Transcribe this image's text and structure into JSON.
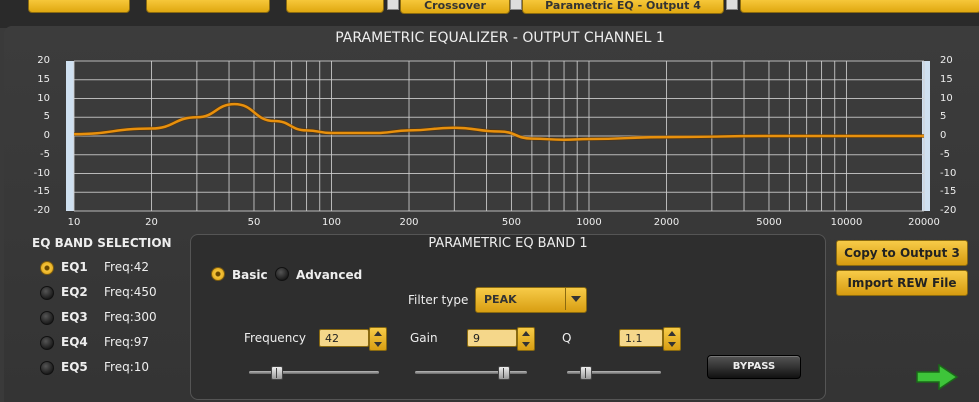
{
  "top_tabs": [
    "Crossover",
    "Parametric EQ - Output 4"
  ],
  "title": "PARAMETRIC EQUALIZER - OUTPUT CHANNEL 1",
  "chart_data": {
    "type": "line",
    "y_ticks": [
      20,
      15,
      10,
      5,
      0,
      -5,
      -10,
      -15,
      -20
    ],
    "x_ticks": [
      10,
      20,
      50,
      100,
      200,
      500,
      1000,
      2000,
      5000,
      10000,
      20000
    ],
    "xlim": [
      10,
      20000
    ],
    "ylim": [
      -20,
      20
    ],
    "x_scale": "log",
    "grid": true,
    "series": [
      {
        "x": [
          10,
          20,
          30,
          42,
          60,
          80,
          100,
          150,
          200,
          300,
          450,
          600,
          800,
          1000,
          2000,
          5000,
          10000,
          20000
        ],
        "y": [
          0.5,
          2,
          5,
          8.5,
          4,
          1.5,
          0.8,
          0.8,
          1.5,
          2.2,
          1.2,
          -0.7,
          -1,
          -0.8,
          -0.3,
          0,
          0,
          0
        ]
      }
    ],
    "curve_color": "#e8900c",
    "grid_color": "#cfcfcf"
  },
  "eq_selection": {
    "heading": "EQ BAND SELECTION",
    "bands": [
      {
        "name": "EQ1",
        "freq": "Freq:42",
        "selected": true
      },
      {
        "name": "EQ2",
        "freq": "Freq:450",
        "selected": false
      },
      {
        "name": "EQ3",
        "freq": "Freq:300",
        "selected": false
      },
      {
        "name": "EQ4",
        "freq": "Freq:97",
        "selected": false
      },
      {
        "name": "EQ5",
        "freq": "Freq:10",
        "selected": false
      }
    ]
  },
  "band_panel": {
    "title": "PARAMETRIC EQ BAND 1",
    "mode_basic": "Basic",
    "mode_advanced": "Advanced",
    "mode_selected": "Basic",
    "filter_type_label": "Filter type",
    "filter_type": "PEAK",
    "frequency_label": "Frequency",
    "frequency": "42",
    "gain_label": "Gain",
    "gain": "9",
    "q_label": "Q",
    "q": "1.1",
    "frequency_slider_pct": 22,
    "gain_slider_pct": 80,
    "q_slider_pct": 18,
    "bypass_label": "BYPASS"
  },
  "buttons": {
    "copy": "Copy to Output 3",
    "import": "Import REW File"
  },
  "icons": {
    "next": "green-arrow-right-icon"
  }
}
